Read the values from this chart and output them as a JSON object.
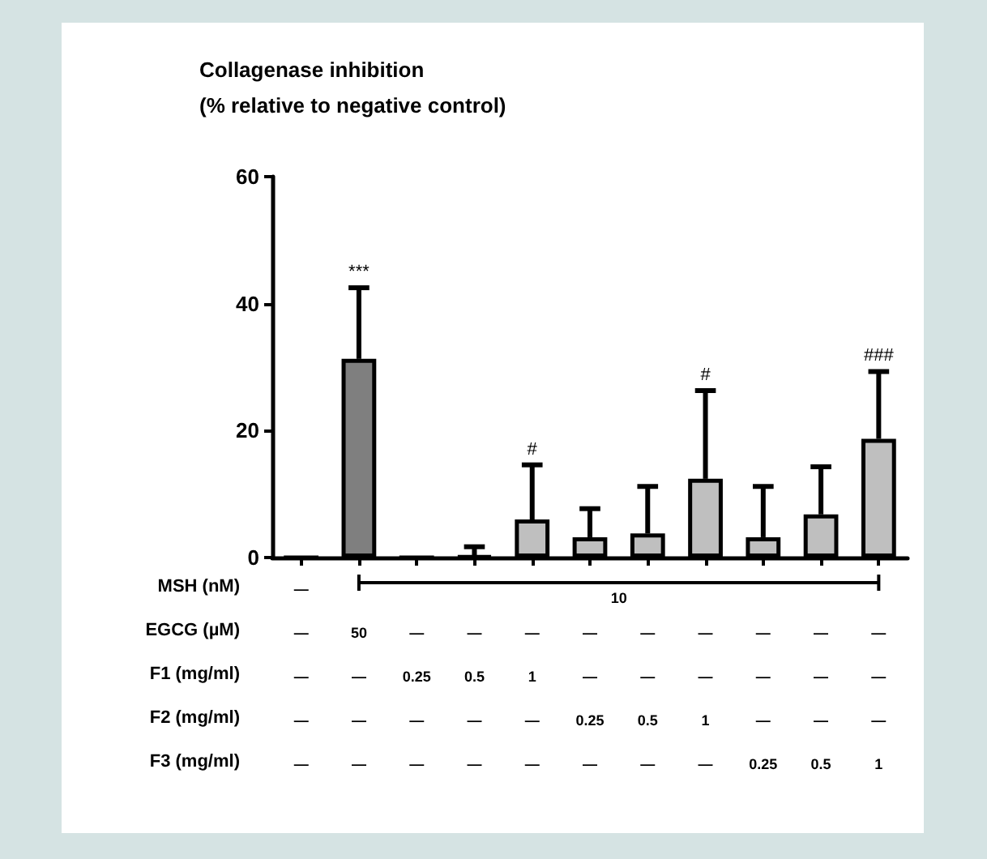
{
  "chart_data": {
    "type": "bar",
    "ylabel": "Collagenase inhibition\n(% relative to negative control)",
    "categories": [
      "—\n—\n—\n—\n—",
      "\n50\n—\n—\n—",
      "\n—\n0.25\n—\n—",
      "\n—\n0.5\n—\n—",
      "\n—\n1\n—\n—",
      "\n—\n—\n0.25\n—",
      "\n—\n—\n0.5\n—",
      "\n—\n—\n1\n—",
      "\n—\n—\n—\n0.25",
      "\n—\n—\n—\n0.5",
      "\n—\n—\n—\n1"
    ],
    "values": [
      0,
      31.3,
      0,
      0.2,
      6.0,
      3.2,
      3.8,
      12.4,
      3.2,
      6.8,
      18.7
    ],
    "errors": [
      null,
      [
        31.3,
        42.5
      ],
      null,
      [
        0.2,
        1.7
      ],
      [
        6.0,
        14.6
      ],
      [
        3.2,
        7.7
      ],
      [
        3.8,
        11.2
      ],
      [
        12.4,
        26.3
      ],
      [
        3.2,
        11.2
      ],
      [
        6.8,
        14.3
      ],
      [
        18.7,
        29.3
      ]
    ],
    "colors": [
      "#000000",
      "#7f7f7f",
      "#000000",
      "#000000",
      "#bfbfbf",
      "#bfbfbf",
      "#bfbfbf",
      "#bfbfbf",
      "#bfbfbf",
      "#bfbfbf",
      "#bfbfbf"
    ],
    "ylim": [
      0,
      60
    ],
    "yticks": [
      0,
      20,
      40,
      60
    ],
    "grid": false,
    "annotations": [
      "MSH (nM)",
      "EGCG (µM)",
      "F1 (mg/ml)",
      "F2 (mg/ml)",
      "F3 (mg/ml)",
      "10",
      {
        "text": "***",
        "x": "\n50\n—\n—\n—",
        "y": 42.5
      },
      {
        "text": "#",
        "x": "\n—\n1\n—\n—",
        "y": 14.6
      },
      {
        "text": "#",
        "x": "\n—\n—\n1\n—",
        "y": 26.3
      },
      {
        "text": "###",
        "x": "\n—\n—\n—\n1",
        "y": 29.3
      }
    ]
  }
}
